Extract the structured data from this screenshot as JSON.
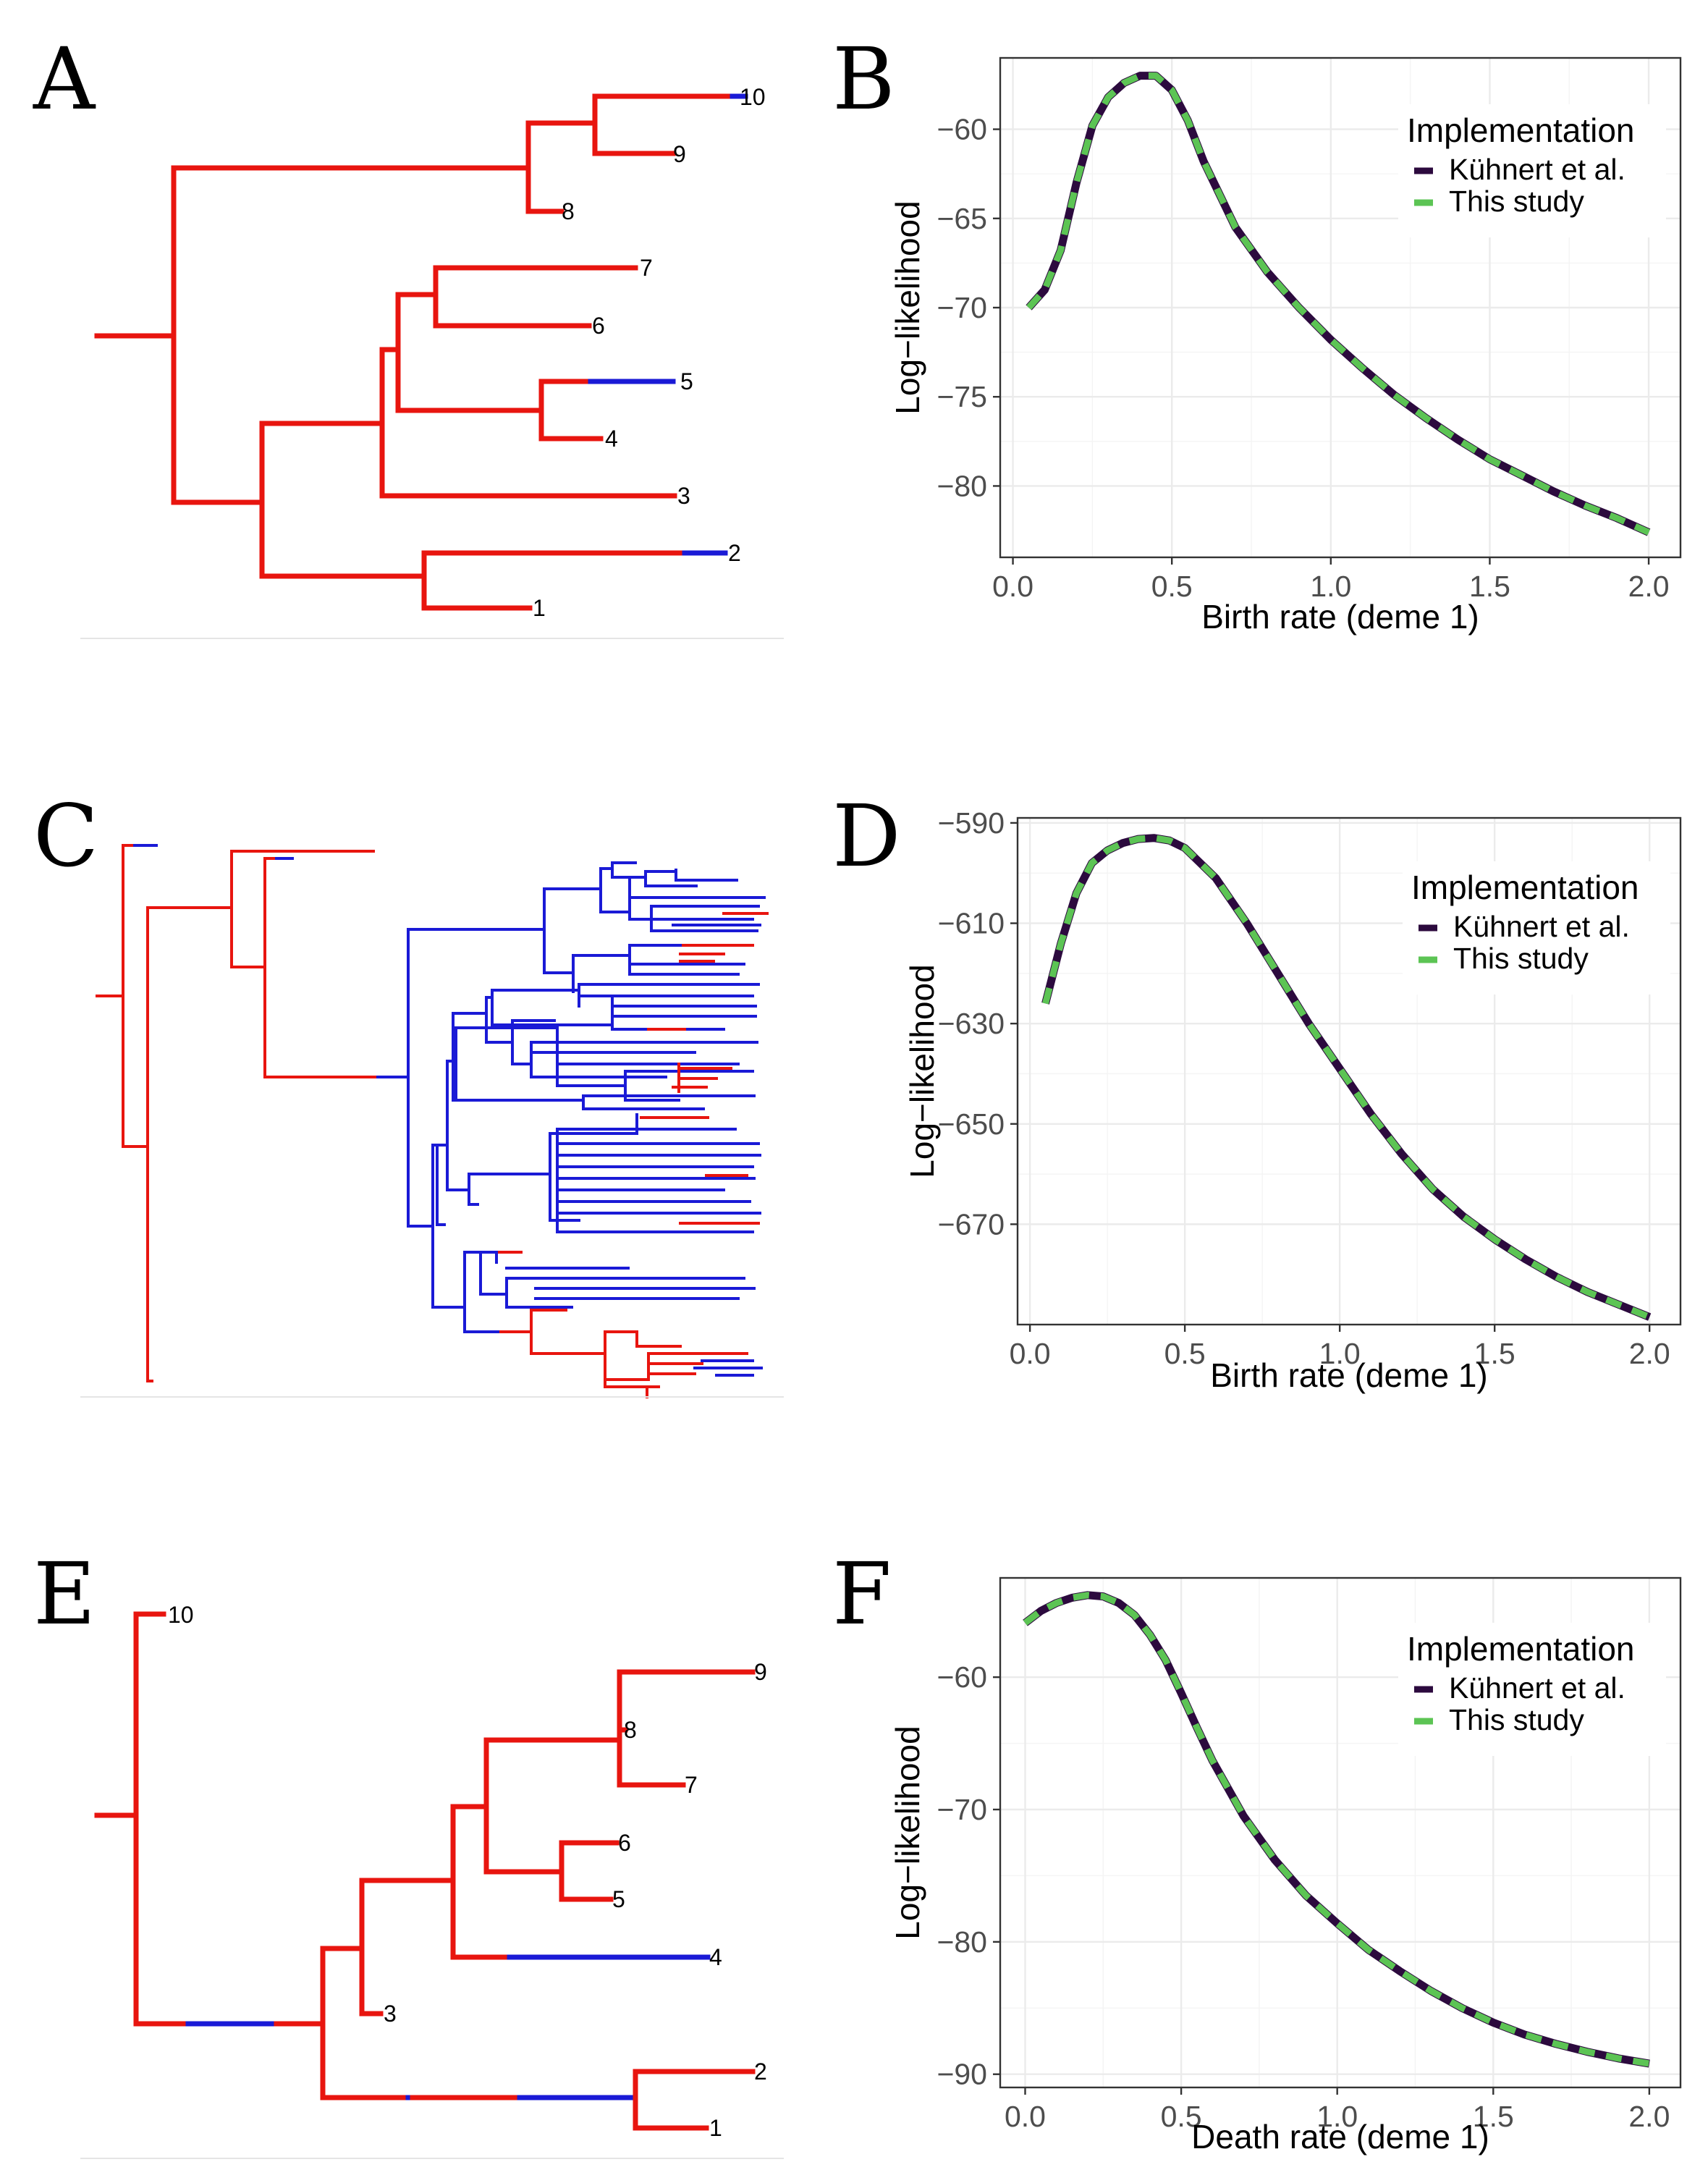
{
  "colors": {
    "deme1": "#e8150f",
    "deme2": "#1a1ad6",
    "kuhnert": "#2c0a3e",
    "this_study": "#5cc454"
  },
  "panels": {
    "A": "A",
    "B": "B",
    "C": "C",
    "D": "D",
    "E": "E",
    "F": "F"
  },
  "chart_data": [
    {
      "panel": "B",
      "type": "line",
      "xlabel": "Birth rate (deme 1)",
      "ylabel": "Log−likelihood",
      "legend_title": "Implementation",
      "legend_position": "top-right",
      "grid": true,
      "xlim": [
        -0.04,
        2.1
      ],
      "ylim": [
        -84.0,
        -56.0
      ],
      "xticks": [
        0.0,
        0.5,
        1.0,
        1.5,
        2.0
      ],
      "xtick_labels": [
        "0.0",
        "0.5",
        "1.0",
        "1.5",
        "2.0"
      ],
      "yticks": [
        -60,
        -65,
        -70,
        -75,
        -80
      ],
      "ytick_labels": [
        "−60",
        "−65",
        "−70",
        "−75",
        "−80"
      ],
      "x": [
        0.05,
        0.1,
        0.15,
        0.2,
        0.25,
        0.3,
        0.35,
        0.4,
        0.45,
        0.5,
        0.55,
        0.6,
        0.7,
        0.8,
        0.9,
        1.0,
        1.1,
        1.2,
        1.3,
        1.4,
        1.5,
        1.6,
        1.7,
        1.8,
        1.9,
        2.0
      ],
      "series": [
        {
          "name": "Kühnert et al.",
          "values": [
            -70.0,
            -69.0,
            -66.8,
            -63.0,
            -59.8,
            -58.2,
            -57.4,
            -57.0,
            -57.0,
            -57.8,
            -59.5,
            -61.8,
            -65.5,
            -68.0,
            -70.0,
            -71.8,
            -73.4,
            -74.9,
            -76.2,
            -77.4,
            -78.5,
            -79.4,
            -80.3,
            -81.1,
            -81.8,
            -82.6
          ]
        },
        {
          "name": "This study",
          "values": [
            -70.0,
            -69.0,
            -66.8,
            -63.0,
            -59.8,
            -58.2,
            -57.4,
            -57.0,
            -57.0,
            -57.8,
            -59.5,
            -61.8,
            -65.5,
            -68.0,
            -70.0,
            -71.8,
            -73.4,
            -74.9,
            -76.2,
            -77.4,
            -78.5,
            -79.4,
            -80.3,
            -81.1,
            -81.8,
            -82.6
          ]
        }
      ]
    },
    {
      "panel": "D",
      "type": "line",
      "xlabel": "Birth rate (deme 1)",
      "ylabel": "Log−likelihood",
      "legend_title": "Implementation",
      "legend_position": "top-right",
      "grid": true,
      "xlim": [
        -0.04,
        2.1
      ],
      "ylim": [
        -690.0,
        -589.0
      ],
      "xticks": [
        0.0,
        0.5,
        1.0,
        1.5,
        2.0
      ],
      "xtick_labels": [
        "0.0",
        "0.5",
        "1.0",
        "1.5",
        "2.0"
      ],
      "yticks": [
        -590,
        -610,
        -630,
        -650,
        -670
      ],
      "ytick_labels": [
        "−590",
        "−610",
        "−630",
        "−650",
        "−670"
      ],
      "x": [
        0.05,
        0.1,
        0.15,
        0.2,
        0.25,
        0.3,
        0.35,
        0.4,
        0.45,
        0.5,
        0.6,
        0.7,
        0.8,
        0.9,
        1.0,
        1.1,
        1.2,
        1.3,
        1.4,
        1.5,
        1.6,
        1.7,
        1.8,
        1.9,
        2.0
      ],
      "series": [
        {
          "name": "Kühnert et al.",
          "values": [
            -626.0,
            -614.0,
            -604.0,
            -598.0,
            -595.5,
            -594.0,
            -593.2,
            -593.0,
            -593.5,
            -595.0,
            -601.0,
            -610.0,
            -620.0,
            -630.0,
            -639.0,
            -648.0,
            -656.0,
            -663.0,
            -668.5,
            -673.0,
            -677.0,
            -680.5,
            -683.5,
            -686.0,
            -688.5
          ]
        },
        {
          "name": "This study",
          "values": [
            -626.0,
            -614.0,
            -604.0,
            -598.0,
            -595.5,
            -594.0,
            -593.2,
            -593.0,
            -593.5,
            -595.0,
            -601.0,
            -610.0,
            -620.0,
            -630.0,
            -639.0,
            -648.0,
            -656.0,
            -663.0,
            -668.5,
            -673.0,
            -677.0,
            -680.5,
            -683.5,
            -686.0,
            -688.5
          ]
        }
      ]
    },
    {
      "panel": "F",
      "type": "line",
      "xlabel": "Death rate (deme 1)",
      "ylabel": "Log−likelihood",
      "legend_title": "Implementation",
      "legend_position": "top-right",
      "grid": true,
      "xlim": [
        -0.08,
        2.1
      ],
      "ylim": [
        -91.0,
        -52.5
      ],
      "xticks": [
        0.0,
        0.5,
        1.0,
        1.5,
        2.0
      ],
      "xtick_labels": [
        "0.0",
        "0.5",
        "1.0",
        "1.5",
        "2.0"
      ],
      "yticks": [
        -60,
        -70,
        -80,
        -90
      ],
      "ytick_labels": [
        "−60",
        "−70",
        "−80",
        "−90"
      ],
      "x": [
        0.0,
        0.05,
        0.1,
        0.15,
        0.2,
        0.25,
        0.3,
        0.35,
        0.4,
        0.45,
        0.5,
        0.55,
        0.6,
        0.7,
        0.8,
        0.9,
        1.0,
        1.1,
        1.2,
        1.3,
        1.4,
        1.5,
        1.6,
        1.7,
        1.8,
        1.9,
        2.0
      ],
      "series": [
        {
          "name": "Kühnert et al.",
          "values": [
            -55.9,
            -55.0,
            -54.4,
            -54.0,
            -53.8,
            -53.9,
            -54.4,
            -55.3,
            -56.8,
            -58.7,
            -61.2,
            -63.8,
            -66.3,
            -70.5,
            -73.8,
            -76.5,
            -78.6,
            -80.6,
            -82.2,
            -83.7,
            -85.0,
            -86.1,
            -87.0,
            -87.7,
            -88.3,
            -88.8,
            -89.2
          ]
        },
        {
          "name": "This study",
          "values": [
            -55.9,
            -55.0,
            -54.4,
            -54.0,
            -53.8,
            -53.9,
            -54.4,
            -55.3,
            -56.8,
            -58.7,
            -61.2,
            -63.8,
            -66.3,
            -70.5,
            -73.8,
            -76.5,
            -78.6,
            -80.6,
            -82.2,
            -83.7,
            -85.0,
            -86.1,
            -87.0,
            -87.7,
            -88.3,
            -88.8,
            -89.2
          ]
        }
      ]
    }
  ],
  "trees": {
    "A": {
      "tip_labels": [
        "10",
        "9",
        "8",
        "7",
        "6",
        "5",
        "4",
        "3",
        "2",
        "1"
      ]
    },
    "E": {
      "tip_labels": [
        "10",
        "9",
        "8",
        "7",
        "6",
        "5",
        "4",
        "3",
        "2",
        "1"
      ]
    }
  }
}
